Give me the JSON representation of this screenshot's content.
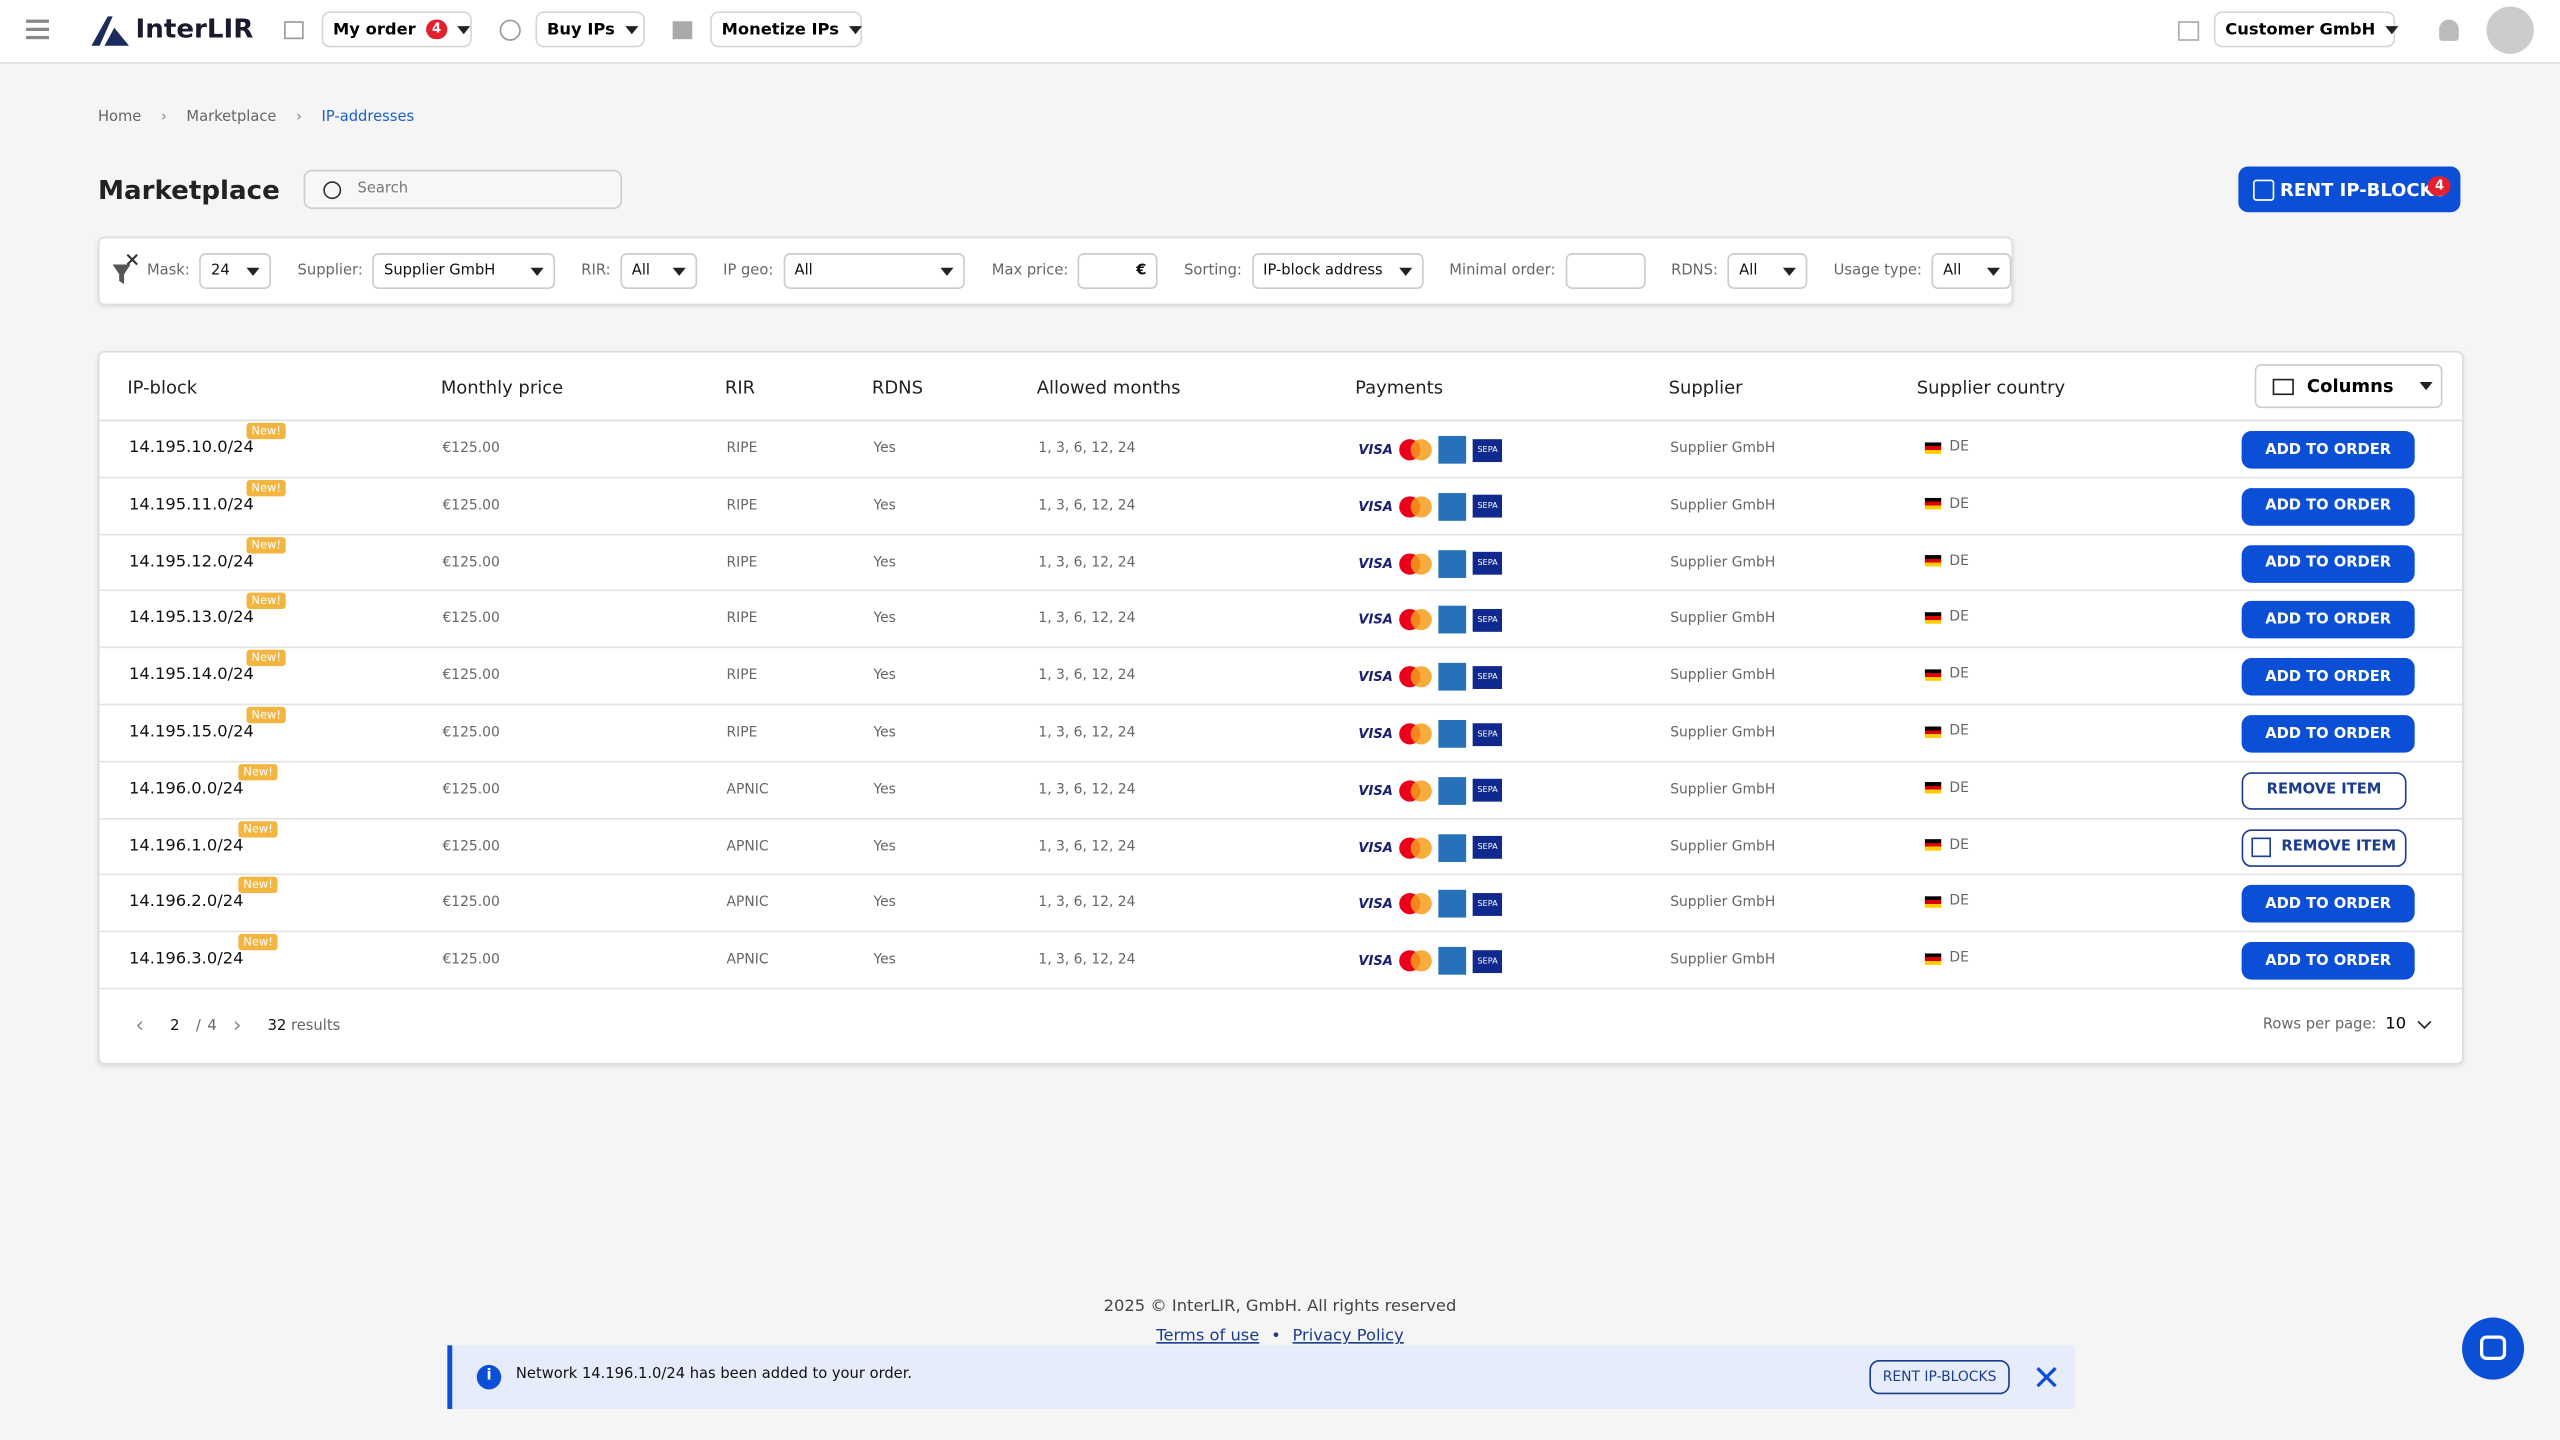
{
  "nav": {
    "logo": "InterLIR",
    "my_order": "My order",
    "order_count": "4",
    "buy": "Buy IPs",
    "monetize": "Monetize IPs",
    "account": "Customer GmbH"
  },
  "breadcrumb": [
    "Home",
    "Marketplace",
    "IP-addresses"
  ],
  "header": {
    "title": "Marketplace",
    "search": "Search",
    "rent": "RENT IP-BLOCKS",
    "rent_count": "4"
  },
  "filters": [
    {
      "label": "Mask:",
      "value": "24"
    },
    {
      "label": "Supplier:",
      "value": "Supplier GmbH"
    },
    {
      "label": "RIR:",
      "value": "All"
    },
    {
      "label": "IP geo:",
      "value": "All"
    },
    {
      "label": "Max price:",
      "suffix": "€"
    },
    {
      "label": "Sorting:",
      "value": "IP-block address"
    },
    {
      "label": "Minimal order:"
    },
    {
      "label": "RDNS:",
      "value": "All"
    },
    {
      "label": "Usage type:",
      "value": "All"
    }
  ],
  "table": {
    "columns": [
      "IP-block",
      "Monthly price",
      "RIR",
      "RDNS",
      "Allowed months",
      "Payments",
      "Supplier",
      "Supplier country"
    ],
    "columns_button": "Columns",
    "badge": "New!",
    "visa": "VISA",
    "sepa": "SEPA",
    "rows": [
      [
        "14.195.10.0/24",
        "€125.00",
        "RIPE",
        "Yes",
        "1, 3, 6, 12, 24",
        "Supplier GmbH",
        "DE",
        "ADD TO ORDER"
      ],
      [
        "14.195.11.0/24",
        "€125.00",
        "RIPE",
        "Yes",
        "1, 3, 6, 12, 24",
        "Supplier GmbH",
        "DE",
        "ADD TO ORDER"
      ],
      [
        "14.195.12.0/24",
        "€125.00",
        "RIPE",
        "Yes",
        "1, 3, 6, 12, 24",
        "Supplier GmbH",
        "DE",
        "ADD TO ORDER"
      ],
      [
        "14.195.13.0/24",
        "€125.00",
        "RIPE",
        "Yes",
        "1, 3, 6, 12, 24",
        "Supplier GmbH",
        "DE",
        "ADD TO ORDER"
      ],
      [
        "14.195.14.0/24",
        "€125.00",
        "RIPE",
        "Yes",
        "1, 3, 6, 12, 24",
        "Supplier GmbH",
        "DE",
        "ADD TO ORDER"
      ],
      [
        "14.195.15.0/24",
        "€125.00",
        "RIPE",
        "Yes",
        "1, 3, 6, 12, 24",
        "Supplier GmbH",
        "DE",
        "ADD TO ORDER"
      ],
      [
        "14.196.0.0/24",
        "€125.00",
        "APNIC",
        "Yes",
        "1, 3, 6, 12, 24",
        "Supplier GmbH",
        "DE",
        "REMOVE ITEM"
      ],
      [
        "14.196.1.0/24",
        "€125.00",
        "APNIC",
        "Yes",
        "1, 3, 6, 12, 24",
        "Supplier GmbH",
        "DE",
        "REMOVE ITEM"
      ],
      [
        "14.196.2.0/24",
        "€125.00",
        "APNIC",
        "Yes",
        "1, 3, 6, 12, 24",
        "Supplier GmbH",
        "DE",
        "ADD TO ORDER"
      ],
      [
        "14.196.3.0/24",
        "€125.00",
        "APNIC",
        "Yes",
        "1, 3, 6, 12, 24",
        "Supplier GmbH",
        "DE",
        "ADD TO ORDER"
      ]
    ]
  },
  "pagination": {
    "page": "2",
    "separator": "/",
    "pages": "4",
    "count": "32",
    "results": "results",
    "rows_label": "Rows per page:",
    "rows_value": "10"
  },
  "footer": {
    "copyright": "2025 © InterLIR, GmbH. All rights reserved",
    "terms": "Terms of use",
    "bullet": "•",
    "privacy": "Privacy Policy"
  },
  "toast": {
    "message": "Network 14.196.1.0/24 has been added to your order.",
    "button": "RENT IP-BLOCKS"
  }
}
